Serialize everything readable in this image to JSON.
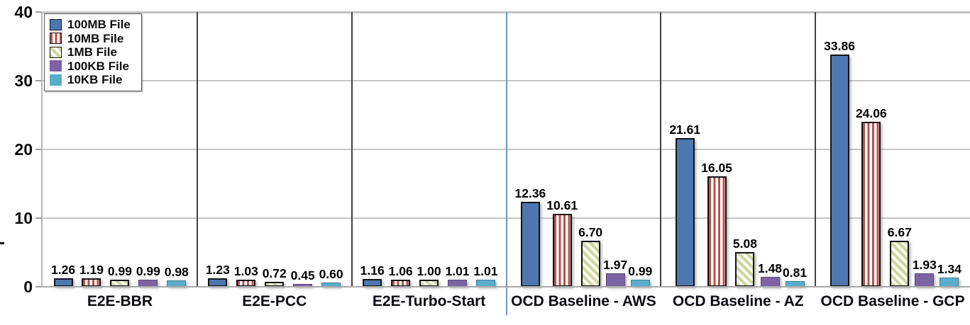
{
  "chart_data": {
    "type": "bar",
    "title": "",
    "xlabel": "",
    "ylabel": "",
    "categories": [
      "E2E-BBR",
      "E2E-PCC",
      "E2E-Turbo-Start",
      "OCD Baseline - AWS",
      "OCD Baseline - AZ",
      "OCD Baseline - GCP"
    ],
    "series": [
      {
        "name": "100MB File",
        "pattern": "solid",
        "color": "#4d78af",
        "border": "#141414",
        "values": [
          1.26,
          1.23,
          1.16,
          12.36,
          21.61,
          33.86
        ]
      },
      {
        "name": "10MB File",
        "pattern": "vertical-stripes",
        "color": "#b5524c",
        "border": "#141414",
        "values": [
          1.19,
          1.03,
          1.06,
          10.61,
          16.05,
          24.06
        ]
      },
      {
        "name": "1MB File",
        "pattern": "diagonal-hatch",
        "color": "#cbd7a0",
        "border": "#141414",
        "values": [
          0.99,
          0.72,
          1.0,
          6.7,
          5.08,
          6.67
        ]
      },
      {
        "name": "100KB File",
        "pattern": "solid",
        "color": "#7c63a4",
        "border": "none",
        "values": [
          0.99,
          0.45,
          1.01,
          1.97,
          1.48,
          1.93
        ]
      },
      {
        "name": "10KB File",
        "pattern": "solid",
        "color": "#59aecb",
        "border": "none",
        "values": [
          0.98,
          0.6,
          1.01,
          0.99,
          0.81,
          1.34
        ]
      }
    ],
    "y_ticks": [
      0,
      10,
      20,
      30,
      40
    ],
    "ylim": [
      0,
      40
    ],
    "grid": "horizontal",
    "legend_position": "top-left",
    "value_labels": "above-bars",
    "value_label_format": "2-decimals",
    "separators": {
      "dark_after_groups": [
        0,
        1,
        3,
        4
      ],
      "accent_after_group": 2,
      "accent_color": "#6d93c3",
      "dark_color": "#414141"
    },
    "colors": {
      "gridline": "#c6c6c6",
      "baseline": "#a9a9a9",
      "category_text": "#0b0b14",
      "value_text": "#000000"
    }
  }
}
